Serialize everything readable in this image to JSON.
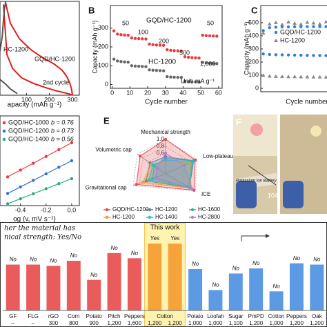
{
  "chart_data": [
    {
      "type": "line",
      "xlabel": "apacity (mAh g⁻¹)",
      "xlim": [
        -15,
        330
      ],
      "xticks": [
        100,
        200,
        300
      ],
      "ylim": [
        0,
        3
      ],
      "labels": [
        "HC-1200",
        "GQD/HC-1200",
        "2nd cycle"
      ],
      "series": [
        {
          "color": "#e31a1c",
          "x": [
            0,
            15,
            40,
            80,
            130,
            180,
            230,
            270,
            290,
            300
          ],
          "values": [
            2.9,
            1.3,
            0.85,
            0.55,
            0.38,
            0.25,
            0.14,
            0.07,
            0.03,
            0.01
          ]
        },
        {
          "color": "#e31a1c",
          "x": [
            300,
            296,
            288,
            275,
            255,
            220,
            170,
            120,
            70,
            30,
            8
          ],
          "values": [
            0.01,
            0.2,
            0.4,
            0.6,
            0.8,
            1.0,
            1.2,
            1.45,
            1.8,
            2.3,
            3.0
          ]
        },
        {
          "color": "#555555",
          "x": [
            -15,
            -5,
            0,
            5,
            10
          ],
          "values": [
            1.4,
            1.9,
            2.4,
            2.8,
            3.0
          ]
        },
        {
          "color": "#555555",
          "x": [
            -15,
            10,
            30,
            50,
            60
          ],
          "values": [
            0.5,
            0.35,
            0.2,
            0.1,
            0.05
          ]
        }
      ]
    },
    {
      "type": "scatter",
      "panel": "B",
      "xlabel": "Cycle number",
      "ylabel": "Capacity (mAh g⁻¹)",
      "xlim": [
        -1,
        62
      ],
      "xticks": [
        0,
        10,
        20,
        30,
        40,
        50,
        60
      ],
      "ylim": [
        -20,
        420
      ],
      "yticks": [
        0,
        100,
        200,
        300
      ],
      "annotations": [
        "50",
        "100",
        "200",
        "500",
        "1,000",
        "50",
        "Unit: mA g⁻¹"
      ],
      "x": [
        1,
        3,
        5,
        7,
        9,
        11,
        13,
        15,
        17,
        19,
        21,
        23,
        25,
        27,
        29,
        31,
        33,
        35,
        37,
        39,
        41,
        43,
        45,
        47,
        49,
        51,
        53,
        55,
        57,
        59
      ],
      "series": [
        {
          "name": "GQD/HC-1200",
          "color": "#e8393b",
          "marker": "circle",
          "values": [
            285,
            268,
            265,
            263,
            262,
            248,
            245,
            244,
            243,
            242,
            215,
            212,
            210,
            209,
            208,
            185,
            182,
            180,
            179,
            178,
            148,
            145,
            143,
            142,
            141,
            262,
            260,
            259,
            258,
            257
          ]
        },
        {
          "name": "HC-1200",
          "color": "#666666",
          "marker": "circle",
          "values": [
            135,
            125,
            122,
            120,
            119,
            100,
            98,
            97,
            96,
            95,
            78,
            76,
            75,
            74,
            73,
            42,
            40,
            39,
            38,
            38,
            16,
            15,
            14,
            14,
            13,
            118,
            115,
            113,
            112,
            111
          ]
        }
      ]
    },
    {
      "type": "scatter",
      "panel": "C",
      "xlabel": "Cycle number",
      "ylabel": "Capacity (mAh g⁻¹)",
      "xlim": [
        0,
        100
      ],
      "ylim": [
        -26,
        631
      ],
      "yticks": [
        0,
        100,
        200,
        300,
        400,
        500
      ],
      "legend": "upper right",
      "x": [
        2,
        7,
        12,
        17,
        22,
        27,
        32,
        37,
        42,
        47,
        52,
        57,
        62,
        67,
        72,
        77,
        82,
        87,
        92,
        97
      ],
      "series": [
        {
          "name": "GQD/HC-1200",
          "color": "#2f7fd8",
          "marker": "circle",
          "values": [
            262,
            258,
            256,
            255,
            254,
            253,
            252,
            251,
            250,
            250,
            249,
            248,
            248,
            247,
            246,
            246,
            245,
            245,
            244,
            244
          ]
        },
        {
          "name": "HC-1200",
          "color": "#888888",
          "marker": "triangle",
          "values": [
            98,
            92,
            90,
            89,
            88,
            88,
            87,
            87,
            86,
            86,
            85,
            85,
            85,
            84,
            84,
            84,
            83,
            83,
            83,
            82
          ]
        },
        {
          "color": "#2f7fd8",
          "marker": "circle",
          "values": [
            440,
            462,
            466,
            468,
            468,
            469,
            469,
            470,
            470,
            470,
            470,
            471,
            471,
            471,
            471,
            471,
            472,
            472,
            472,
            472
          ]
        },
        {
          "color": "#888888",
          "marker": "triangle",
          "values": [
            420,
            490,
            500,
            485,
            505,
            495,
            488,
            502,
            497,
            490,
            506,
            493,
            499,
            487,
            503,
            496,
            491,
            504,
            498,
            494
          ]
        }
      ]
    },
    {
      "type": "line",
      "xlabel": "og (v, mV s⁻¹)",
      "xlim": [
        -0.56,
        0.06
      ],
      "xticks": [
        -0.4,
        -0.2,
        {
          "value": 0,
          "label": "0.0"
        }
      ],
      "ylim": [
        -1.6,
        -0.6
      ],
      "series": [
        {
          "name": "GQD/HC-1000",
          "fit_label": "b = 0.76",
          "color": "#e8393b",
          "marker": "circle",
          "x": [
            -0.5,
            -0.4,
            -0.3,
            -0.2,
            -0.1,
            0
          ],
          "values": [
            -1.28,
            -1.204,
            -1.128,
            -1.052,
            -0.976,
            -0.9
          ]
        },
        {
          "name": "GQD/HC-1200",
          "fit_label": "b = 0.73",
          "color": "#2f6fd0",
          "marker": "circle",
          "x": [
            -0.5,
            -0.4,
            -0.3,
            -0.2,
            -0.1,
            0
          ],
          "values": [
            -1.465,
            -1.392,
            -1.319,
            -1.246,
            -1.173,
            -1.1
          ]
        },
        {
          "name": "GQD/HC-1400",
          "fit_label": "b = 0.56",
          "color": "#2aa876",
          "marker": "circle",
          "x": [
            -0.5,
            -0.4,
            -0.3,
            -0.2,
            -0.1,
            0
          ],
          "values": [
            -1.58,
            -1.524,
            -1.468,
            -1.412,
            -1.356,
            -1.3
          ]
        }
      ]
    },
    {
      "type": "radar",
      "panel": "E",
      "axes": [
        "Mechanical strength",
        "Low-plateau cap",
        "ICE",
        "Gravitational cap",
        "Volumetric cap"
      ],
      "rlim": [
        0,
        1
      ],
      "rticks": [
        {
          "value": 1,
          "label": "1.0"
        },
        {
          "value": 0.8,
          "label": "0.8"
        },
        {
          "value": 0.6,
          "label": "0.6"
        }
      ],
      "series": [
        {
          "name": "GQD/HC-1200",
          "color": "#e8474b",
          "values": [
            1.0,
            0.95,
            0.95,
            0.9,
            0.9
          ]
        },
        {
          "name": "HC-1200",
          "color": "#5b7fa6",
          "values": [
            0.5,
            0.9,
            0.8,
            0.6,
            0.55
          ]
        },
        {
          "name": "HC-1600",
          "color": "#2bb3a0",
          "values": [
            0.45,
            0.9,
            0.75,
            0.4,
            0.4
          ]
        },
        {
          "name": "HC-1200",
          "color": "#f0a030",
          "values": [
            0.35,
            0.8,
            0.85,
            0.7,
            0.5
          ]
        },
        {
          "name": "HC-1400",
          "color": "#30b8d8",
          "values": [
            0.4,
            0.85,
            0.8,
            0.5,
            0.45
          ]
        },
        {
          "name": "HC-2800",
          "color": "#b07fd0",
          "values": [
            0.6,
            0.6,
            0.9,
            0.3,
            0.3
          ]
        }
      ]
    },
    {
      "type": "bar",
      "title": "her the material has",
      "subtitle": "nical strength: Yes/No",
      "highlight": "This work",
      "categories": [
        "GF",
        "FLG",
        "rGO",
        "Corn",
        "Potato",
        "Pitch",
        "Peppers",
        "Cotton",
        null,
        "Potato",
        "Loofah",
        "Sugar",
        "PmPD",
        "Cotton",
        "Peppers",
        "Oak"
      ],
      "temperatures": [
        "--",
        "--",
        "300",
        "800",
        "900",
        "1,200",
        "1,600",
        "1,200",
        "1,200",
        "1,000",
        "1,000",
        "1,100",
        "1,200",
        "1,000",
        "1,200",
        "1,200"
      ],
      "strength_labels": [
        "No",
        "No",
        "No",
        "No",
        "No",
        "No",
        "No",
        "Yes",
        "Yes",
        "No",
        "No",
        "No",
        "No",
        "No",
        "No",
        "No"
      ],
      "values": [
        72,
        72,
        70,
        78,
        48,
        90,
        82,
        105,
        105,
        65,
        32,
        58,
        66,
        30,
        74,
        72
      ],
      "colors": [
        "#e84a4a",
        "#e84a4a",
        "#e84a4a",
        "#e84a4a",
        "#e84a4a",
        "#e84a4a",
        "#e84a4a",
        "#f59a2c",
        "#f59a2c",
        "#4a8fe0",
        "#4a8fe0",
        "#4a8fe0",
        "#4a8fe0",
        "#4a8fe0",
        "#4a8fe0",
        "#4a8fe0"
      ],
      "ylim": [
        0,
        130
      ]
    }
  ],
  "photo": {
    "panel": "F",
    "caption": "Potassium Ion Battery",
    "angle_label": "104°"
  }
}
